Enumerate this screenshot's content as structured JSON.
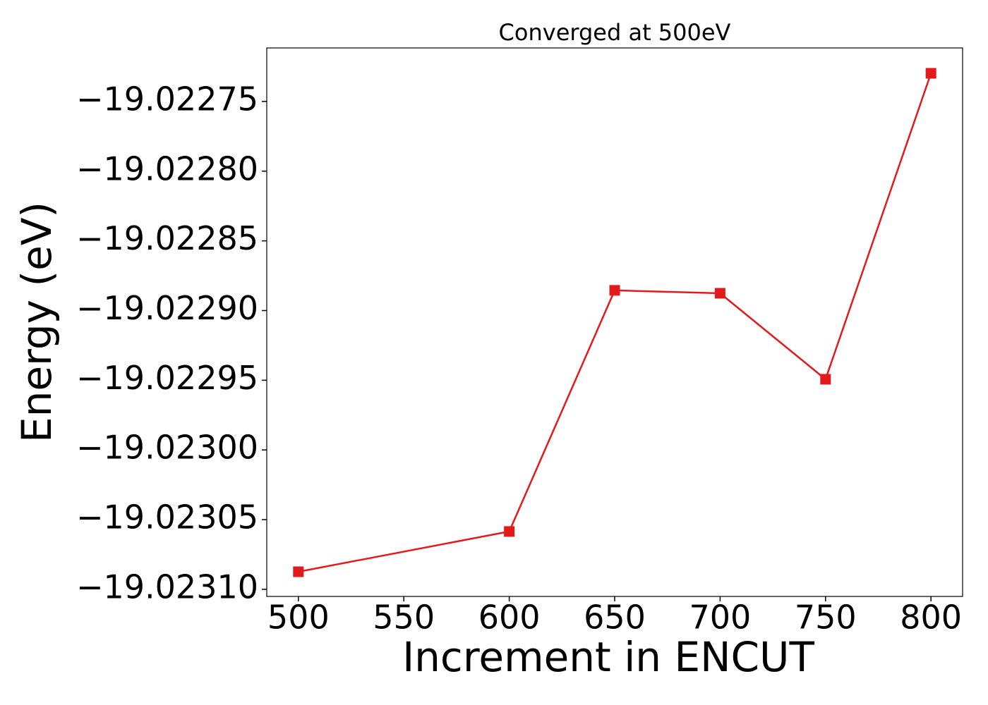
{
  "chart_data": {
    "type": "line",
    "title": "Converged at 500eV",
    "xlabel": "Increment in ENCUT",
    "ylabel": "Energy (eV)",
    "x": [
      500,
      600,
      650,
      700,
      750,
      800
    ],
    "series": [
      {
        "color": "#e31a1c",
        "values": [
          -19.0230874,
          -19.0230585,
          -19.0228855,
          -19.0228876,
          -19.0229493,
          -19.0227298
        ]
      }
    ],
    "xlim": [
      485,
      815
    ],
    "ylim": [
      -19.0231051,
      -19.0227116
    ],
    "xticks": [
      500,
      550,
      600,
      650,
      700,
      750,
      800
    ],
    "yticks": [
      {
        "value": -19.02275,
        "label": "−19.02275"
      },
      {
        "value": -19.0228,
        "label": "−19.02280"
      },
      {
        "value": -19.02285,
        "label": "−19.02285"
      },
      {
        "value": -19.0229,
        "label": "−19.02290"
      },
      {
        "value": -19.02295,
        "label": "−19.02295"
      },
      {
        "value": -19.023,
        "label": "−19.02300"
      },
      {
        "value": -19.02305,
        "label": "−19.02305"
      },
      {
        "value": -19.0231,
        "label": "−19.02310"
      }
    ],
    "grid": false
  }
}
